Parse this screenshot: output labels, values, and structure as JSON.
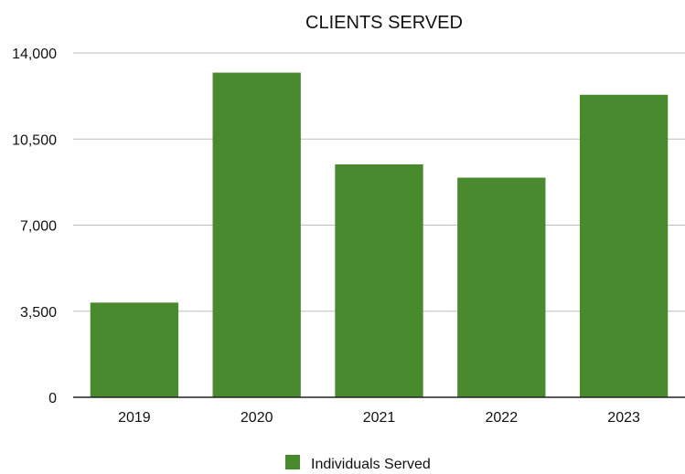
{
  "chart_data": {
    "type": "bar",
    "title": "CLIENTS SERVED",
    "xlabel": "",
    "ylabel": "",
    "categories": [
      "2019",
      "2020",
      "2021",
      "2022",
      "2023"
    ],
    "series": [
      {
        "name": "Individuals Served",
        "values": [
          3850,
          13200,
          9470,
          8930,
          12300
        ],
        "color": "#4a8a2f"
      }
    ],
    "ylim": [
      0,
      14000
    ],
    "yticks": [
      0,
      3500,
      7000,
      10500,
      14000
    ],
    "ytick_labels": [
      "0",
      "3,500",
      "7,000",
      "10,500",
      "14,000"
    ],
    "grid": true,
    "legend_position": "bottom-center"
  }
}
